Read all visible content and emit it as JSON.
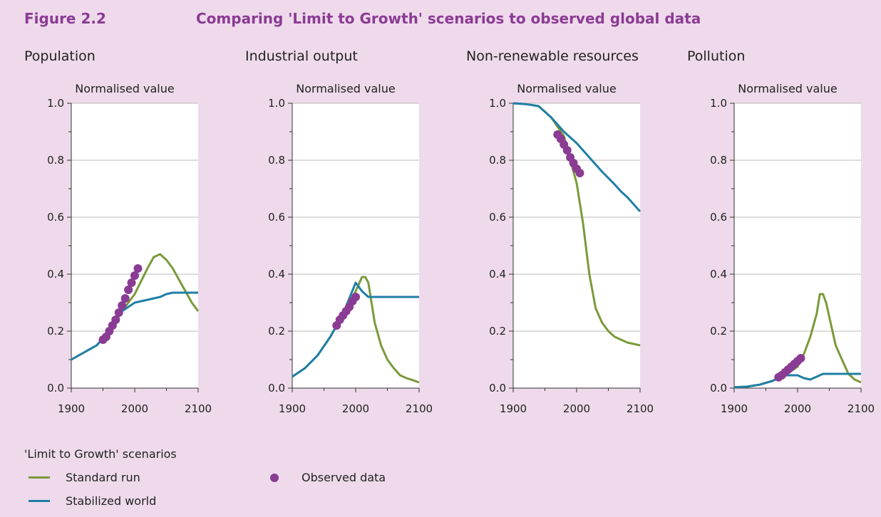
{
  "figure": {
    "number": "Figure 2.2",
    "title": "Comparing 'Limit to Growth' scenarios to observed global data"
  },
  "legend": {
    "title": "'Limit to Growth' scenarios",
    "standard_run": "Standard run",
    "stabilized_world": "Stabilized world",
    "observed": "Observed data"
  },
  "colors": {
    "standard_run": "#7a9a3a",
    "stabilized_world": "#1f7fa6",
    "observed": "#8a3b93",
    "gridline": "#bbbbbb",
    "axis": "#333333"
  },
  "chart_data": [
    {
      "type": "line",
      "title": "Population",
      "ylabel": "Normalised value",
      "xlim": [
        1900,
        2100
      ],
      "ylim": [
        0,
        1
      ],
      "xticks": [
        "1900",
        "2000",
        "2100"
      ],
      "yticks": [
        "0.0",
        "0.2",
        "0.4",
        "0.6",
        "0.8",
        "1.0"
      ],
      "grid": true,
      "series": [
        {
          "name": "Standard run",
          "x": [
            1900,
            1920,
            1940,
            1960,
            1980,
            2000,
            2020,
            2030,
            2040,
            2050,
            2060,
            2070,
            2080,
            2090,
            2100
          ],
          "y": [
            0.1,
            0.125,
            0.15,
            0.2,
            0.27,
            0.33,
            0.42,
            0.46,
            0.47,
            0.45,
            0.42,
            0.38,
            0.34,
            0.3,
            0.27
          ]
        },
        {
          "name": "Stabilized world",
          "x": [
            1900,
            1920,
            1940,
            1960,
            1980,
            2000,
            2020,
            2040,
            2050,
            2060,
            2070,
            2080,
            2090,
            2100
          ],
          "y": [
            0.1,
            0.125,
            0.15,
            0.2,
            0.27,
            0.3,
            0.31,
            0.32,
            0.33,
            0.335,
            0.335,
            0.335,
            0.335,
            0.335
          ]
        },
        {
          "name": "Observed data",
          "x": [
            1950,
            1955,
            1960,
            1965,
            1970,
            1975,
            1980,
            1985,
            1990,
            1995,
            2000,
            2005
          ],
          "y": [
            0.17,
            0.18,
            0.2,
            0.22,
            0.24,
            0.265,
            0.29,
            0.315,
            0.345,
            0.37,
            0.395,
            0.42
          ]
        }
      ]
    },
    {
      "type": "line",
      "title": "Industrial output",
      "ylabel": "Normalised value",
      "xlim": [
        1900,
        2100
      ],
      "ylim": [
        0,
        1
      ],
      "xticks": [
        "1900",
        "2000",
        "2100"
      ],
      "yticks": [
        "0.0",
        "0.2",
        "0.4",
        "0.6",
        "0.8",
        "1.0"
      ],
      "grid": true,
      "series": [
        {
          "name": "Standard run",
          "x": [
            1900,
            1920,
            1940,
            1960,
            1980,
            2000,
            2010,
            2015,
            2020,
            2030,
            2040,
            2050,
            2060,
            2070,
            2080,
            2090,
            2100
          ],
          "y": [
            0.04,
            0.07,
            0.115,
            0.18,
            0.26,
            0.34,
            0.39,
            0.39,
            0.37,
            0.23,
            0.15,
            0.1,
            0.07,
            0.045,
            0.035,
            0.028,
            0.02
          ]
        },
        {
          "name": "Stabilized world",
          "x": [
            1900,
            1920,
            1940,
            1960,
            1980,
            2000,
            2010,
            2020,
            2040,
            2060,
            2080,
            2100
          ],
          "y": [
            0.04,
            0.07,
            0.115,
            0.18,
            0.26,
            0.37,
            0.34,
            0.32,
            0.32,
            0.32,
            0.32,
            0.32
          ]
        },
        {
          "name": "Observed data",
          "x": [
            1970,
            1975,
            1980,
            1985,
            1990,
            1995,
            2000
          ],
          "y": [
            0.22,
            0.24,
            0.255,
            0.27,
            0.285,
            0.305,
            0.32
          ]
        }
      ]
    },
    {
      "type": "line",
      "title": "Non-renewable resources",
      "ylabel": "Normalised value",
      "xlim": [
        1900,
        2100
      ],
      "ylim": [
        0,
        1
      ],
      "xticks": [
        "1900",
        "2000",
        "2100"
      ],
      "yticks": [
        "0.0",
        "0.2",
        "0.4",
        "0.6",
        "0.8",
        "1.0"
      ],
      "grid": true,
      "series": [
        {
          "name": "Standard run",
          "x": [
            1900,
            1920,
            1940,
            1960,
            1980,
            1990,
            2000,
            2010,
            2020,
            2030,
            2040,
            2050,
            2060,
            2070,
            2080,
            2090,
            2100
          ],
          "y": [
            1.0,
            0.997,
            0.99,
            0.95,
            0.885,
            0.8,
            0.72,
            0.58,
            0.4,
            0.28,
            0.23,
            0.2,
            0.18,
            0.17,
            0.16,
            0.155,
            0.15
          ]
        },
        {
          "name": "Stabilized world",
          "x": [
            1900,
            1920,
            1940,
            1960,
            1980,
            2000,
            2020,
            2040,
            2060,
            2070,
            2080,
            2090,
            2100
          ],
          "y": [
            1.0,
            0.997,
            0.99,
            0.95,
            0.9,
            0.86,
            0.81,
            0.76,
            0.715,
            0.69,
            0.67,
            0.645,
            0.62
          ]
        },
        {
          "name": "Observed data",
          "x": [
            1970,
            1975,
            1980,
            1985,
            1990,
            1995,
            2000,
            2005
          ],
          "y": [
            0.89,
            0.875,
            0.855,
            0.835,
            0.81,
            0.79,
            0.77,
            0.755
          ]
        }
      ]
    },
    {
      "type": "line",
      "title": "Pollution",
      "ylabel": "Normalised value",
      "xlim": [
        1900,
        2100
      ],
      "ylim": [
        0,
        1
      ],
      "xticks": [
        "1900",
        "2000",
        "2100"
      ],
      "yticks": [
        "0.0",
        "0.2",
        "0.4",
        "0.6",
        "0.8",
        "1.0"
      ],
      "grid": true,
      "series": [
        {
          "name": "Standard run",
          "x": [
            1900,
            1920,
            1940,
            1960,
            1980,
            2000,
            2010,
            2020,
            2030,
            2035,
            2040,
            2045,
            2060,
            2080,
            2090,
            2100
          ],
          "y": [
            0.003,
            0.005,
            0.012,
            0.025,
            0.045,
            0.075,
            0.12,
            0.18,
            0.26,
            0.33,
            0.33,
            0.3,
            0.15,
            0.05,
            0.03,
            0.02
          ]
        },
        {
          "name": "Stabilized world",
          "x": [
            1900,
            1920,
            1940,
            1960,
            1980,
            2000,
            2010,
            2020,
            2030,
            2040,
            2060,
            2080,
            2100
          ],
          "y": [
            0.003,
            0.005,
            0.012,
            0.025,
            0.045,
            0.045,
            0.035,
            0.03,
            0.04,
            0.05,
            0.05,
            0.05,
            0.05
          ]
        },
        {
          "name": "Observed data",
          "x": [
            1970,
            1975,
            1980,
            1985,
            1990,
            1995,
            2000,
            2005
          ],
          "y": [
            0.038,
            0.045,
            0.055,
            0.065,
            0.075,
            0.085,
            0.095,
            0.105
          ]
        }
      ]
    }
  ]
}
